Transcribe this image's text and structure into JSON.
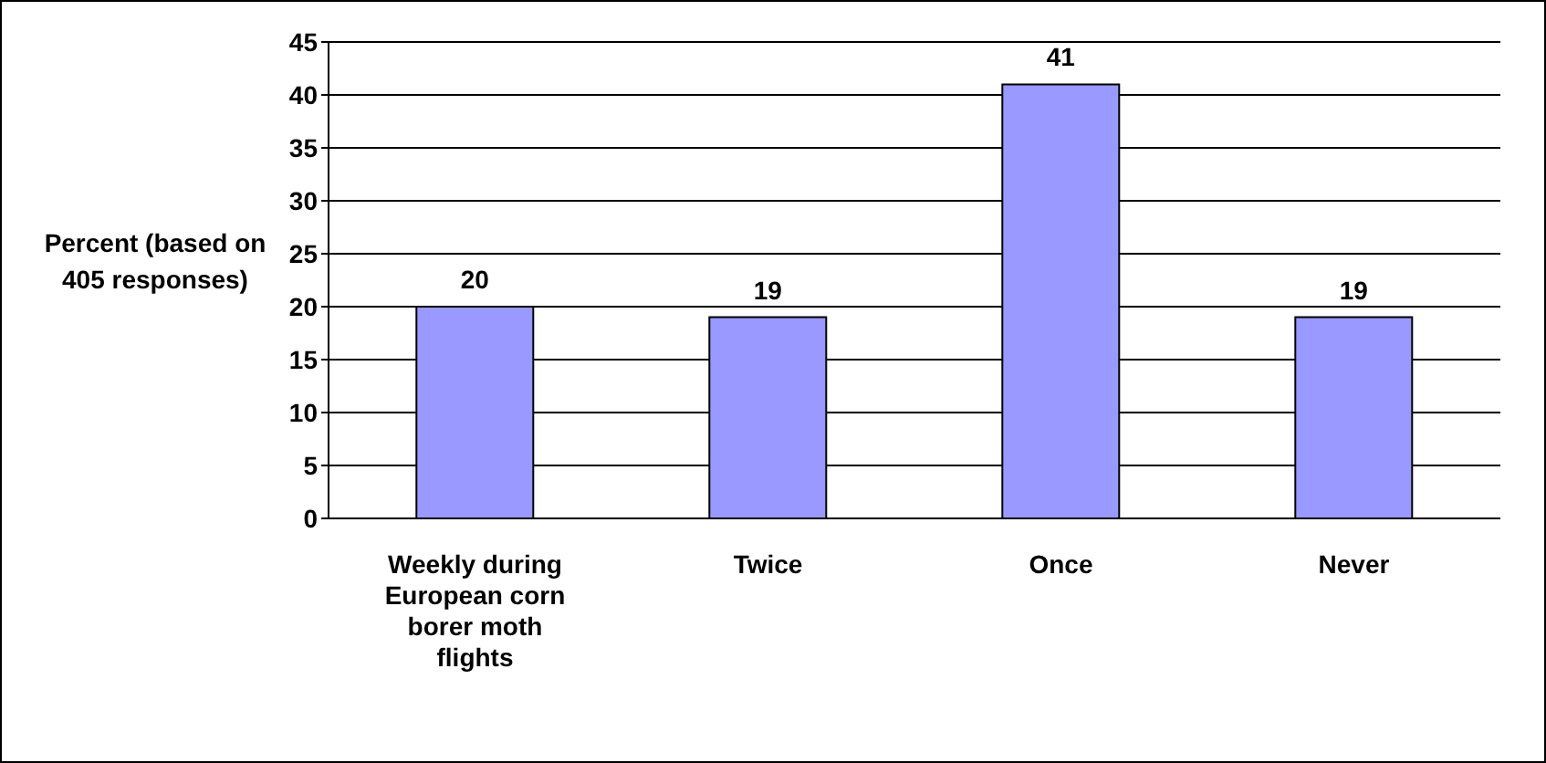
{
  "chart_data": {
    "type": "bar",
    "ylabel": "Percent (based on 405 responses)",
    "categories": [
      "Weekly during European corn borer moth flights",
      "Twice",
      "Once",
      "Never"
    ],
    "values": [
      20,
      19,
      41,
      19
    ],
    "color": "#9999ff",
    "ylim": [
      0,
      45
    ],
    "yticks": [
      0,
      5,
      10,
      15,
      20,
      25,
      30,
      35,
      40,
      45
    ],
    "grid": "y",
    "data_labels": true,
    "legend": false
  }
}
